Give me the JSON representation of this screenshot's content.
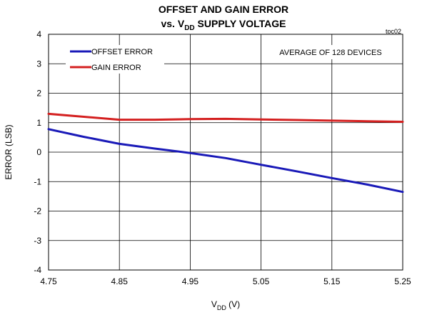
{
  "chart_data": {
    "type": "line",
    "title_line1": "OFFSET AND GAIN ERROR",
    "title_line2_prefix": "vs. V",
    "title_line2_sub": "DD",
    "title_line2_suffix": " SUPPLY VOLTAGE",
    "tag": "toc02",
    "annotation": "AVERAGE OF 128 DEVICES",
    "xlabel_main": "V",
    "xlabel_sub": "DD",
    "xlabel_suffix": " (V)",
    "ylabel": "ERROR (LSB)",
    "xlim": [
      4.75,
      5.25
    ],
    "ylim": [
      -4,
      4
    ],
    "x_ticks": [
      "4.75",
      "4.85",
      "4.95",
      "5.05",
      "5.15",
      "5.25"
    ],
    "y_ticks": [
      "4",
      "3",
      "2",
      "1",
      "0",
      "-1",
      "-2",
      "-3",
      "-4"
    ],
    "grid": true,
    "legend_position": "top-left",
    "series": [
      {
        "name": "OFFSET ERROR",
        "color": "#1a1ab8",
        "x": [
          4.75,
          4.8,
          4.85,
          4.9,
          4.95,
          5.0,
          5.05,
          5.1,
          5.15,
          5.2,
          5.25
        ],
        "y": [
          0.78,
          0.52,
          0.28,
          0.12,
          -0.03,
          -0.2,
          -0.43,
          -0.65,
          -0.88,
          -1.1,
          -1.35
        ]
      },
      {
        "name": "GAIN ERROR",
        "color": "#d42020",
        "x": [
          4.75,
          4.8,
          4.85,
          4.9,
          4.95,
          5.0,
          5.05,
          5.1,
          5.15,
          5.2,
          5.25
        ],
        "y": [
          1.3,
          1.2,
          1.1,
          1.1,
          1.12,
          1.13,
          1.11,
          1.09,
          1.07,
          1.05,
          1.03
        ]
      }
    ]
  }
}
